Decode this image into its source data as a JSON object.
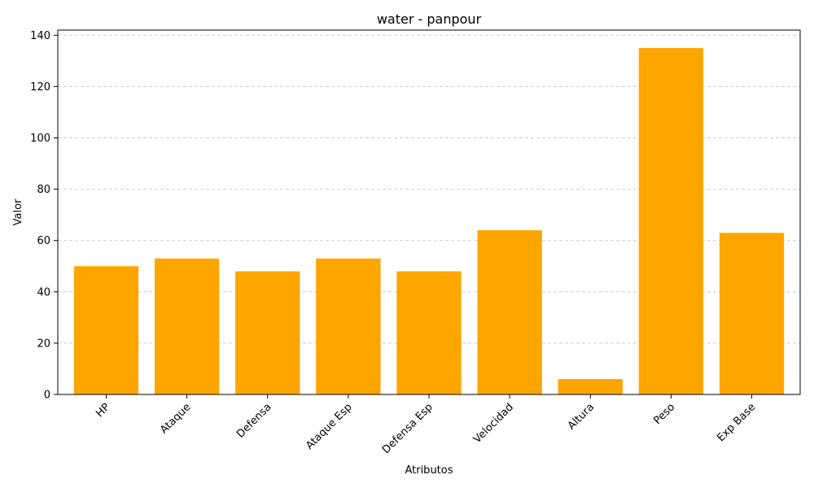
{
  "chart_data": {
    "type": "bar",
    "title": "water - panpour",
    "xlabel": "Atributos",
    "ylabel": "Valor",
    "categories": [
      "HP",
      "Ataque",
      "Defensa",
      "Ataque Esp",
      "Defensa Esp",
      "Velocidad",
      "Altura",
      "Peso",
      "Exp Base"
    ],
    "values": [
      50,
      53,
      48,
      53,
      48,
      64,
      6,
      135,
      63
    ],
    "ylim": [
      0,
      142
    ],
    "yticks": [
      0,
      20,
      40,
      60,
      80,
      100,
      120,
      140
    ],
    "grid": "y-dashed",
    "bar_color": "#ffa500",
    "x_tick_rotation": 45
  }
}
